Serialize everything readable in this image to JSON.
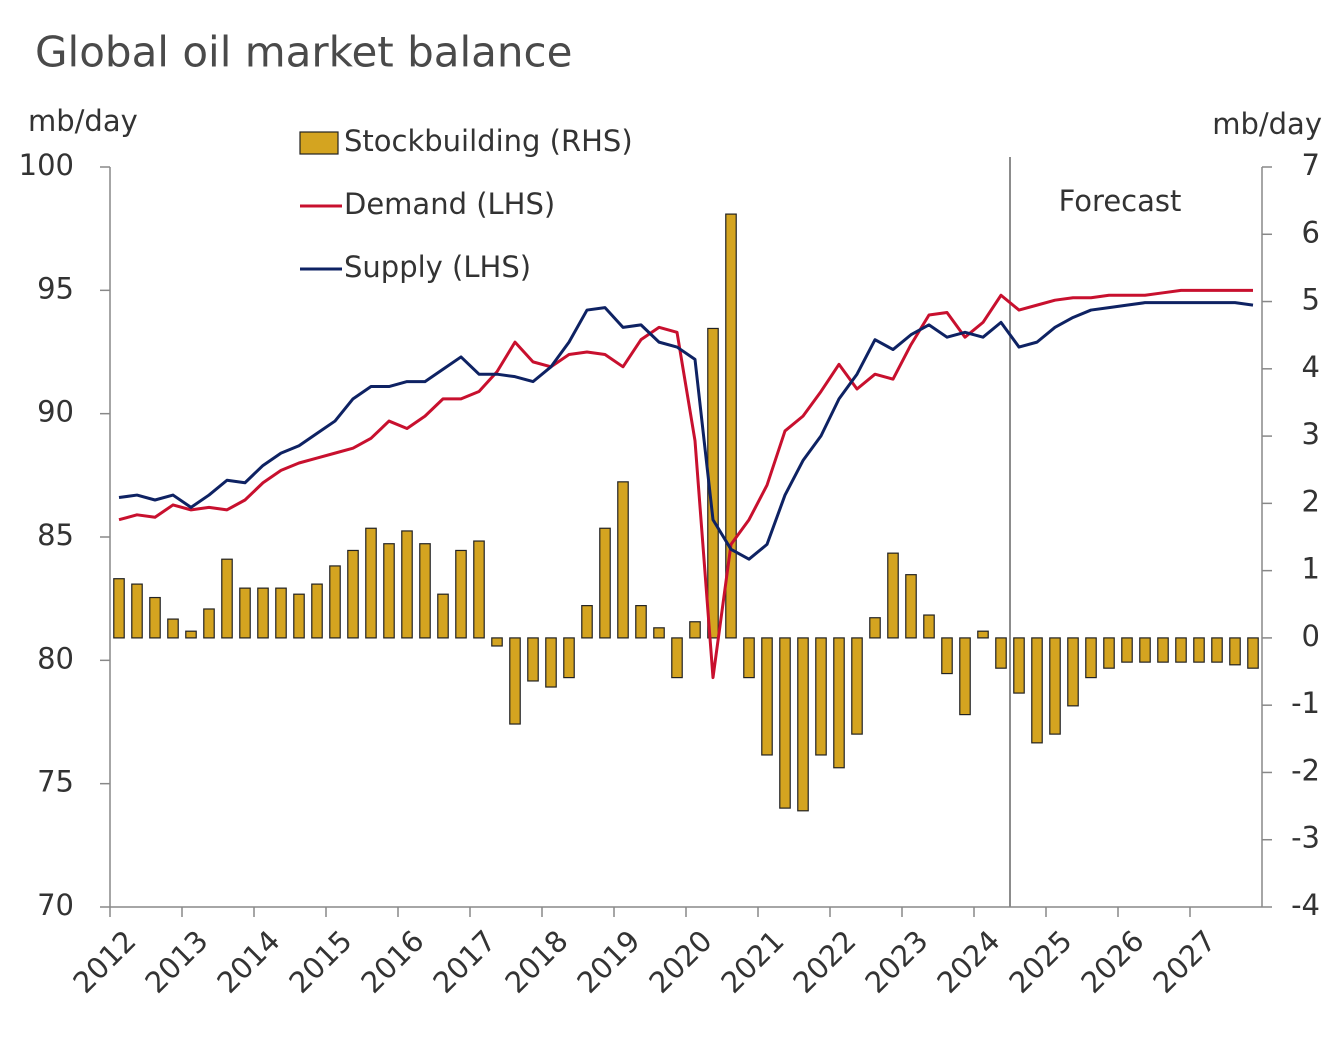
{
  "chart_data": {
    "type": "bar-line",
    "title": "Global oil market balance",
    "ylabel": "mb/day",
    "y2label": "mb/day",
    "annotation": "Forecast",
    "forecast_line": 2024.5,
    "x": [
      2012.125,
      2012.375,
      2012.625,
      2012.875,
      2013.125,
      2013.375,
      2013.625,
      2013.875,
      2014.125,
      2014.375,
      2014.625,
      2014.875,
      2015.125,
      2015.375,
      2015.625,
      2015.875,
      2016.125,
      2016.375,
      2016.625,
      2016.875,
      2017.125,
      2017.375,
      2017.625,
      2017.875,
      2018.125,
      2018.375,
      2018.625,
      2018.875,
      2019.125,
      2019.375,
      2019.625,
      2019.875,
      2020.125,
      2020.375,
      2020.625,
      2020.875,
      2021.125,
      2021.375,
      2021.625,
      2021.875,
      2022.125,
      2022.375,
      2022.625,
      2022.875,
      2023.125,
      2023.375,
      2023.625,
      2023.875,
      2024.125,
      2024.375,
      2024.625,
      2024.875,
      2025.125,
      2025.375,
      2025.625,
      2025.875,
      2026.125,
      2026.375,
      2026.625,
      2026.875,
      2027.125,
      2027.375,
      2027.625,
      2027.875
    ],
    "series": [
      {
        "name": "Stockbuilding (RHS)",
        "type": "bar",
        "axis": "y2",
        "color": "#d4a420",
        "values": [
          0.88,
          0.8,
          0.6,
          0.28,
          0.1,
          0.43,
          1.17,
          0.74,
          0.74,
          0.74,
          0.65,
          0.8,
          1.07,
          1.3,
          1.63,
          1.4,
          1.59,
          1.4,
          0.65,
          1.3,
          1.44,
          -0.12,
          -1.28,
          -0.64,
          -0.73,
          -0.59,
          0.48,
          1.63,
          2.32,
          0.48,
          0.15,
          -0.59,
          0.24,
          4.6,
          6.3,
          -0.59,
          -1.74,
          -2.53,
          -2.57,
          -1.74,
          -1.93,
          -1.43,
          0.3,
          1.26,
          0.94,
          0.34,
          -0.53,
          -1.14,
          0.1,
          -0.45,
          -0.82,
          -1.56,
          -1.43,
          -1.01,
          -0.59,
          -0.45,
          -0.36,
          -0.36,
          -0.36,
          -0.36,
          -0.36,
          -0.36,
          -0.4,
          -0.45
        ]
      },
      {
        "name": "Demand (LHS)",
        "type": "line",
        "axis": "y",
        "color": "#c8102e",
        "values": [
          85.7,
          85.9,
          85.8,
          86.3,
          86.1,
          86.2,
          86.1,
          86.5,
          87.2,
          87.7,
          88.0,
          88.2,
          88.4,
          88.6,
          89.0,
          89.7,
          89.4,
          89.9,
          90.6,
          90.6,
          90.9,
          91.7,
          92.9,
          92.1,
          91.9,
          92.4,
          92.5,
          92.4,
          91.9,
          93.0,
          93.5,
          93.3,
          88.9,
          79.3,
          84.7,
          85.7,
          87.1,
          89.3,
          89.9,
          90.9,
          92.0,
          91.0,
          91.6,
          91.4,
          92.8,
          94.0,
          94.1,
          93.1,
          93.7,
          94.8,
          94.2,
          94.4,
          94.6,
          94.7,
          94.7,
          94.8,
          94.8,
          94.8,
          94.9,
          95.0,
          95.0,
          95.0,
          95.0,
          95.0
        ]
      },
      {
        "name": "Supply (LHS)",
        "type": "line",
        "axis": "y",
        "color": "#0e2263",
        "values": [
          86.6,
          86.7,
          86.5,
          86.7,
          86.2,
          86.7,
          87.3,
          87.2,
          87.9,
          88.4,
          88.7,
          89.2,
          89.7,
          90.6,
          91.1,
          91.1,
          91.3,
          91.3,
          91.8,
          92.3,
          91.6,
          91.6,
          91.5,
          91.3,
          91.9,
          92.9,
          94.2,
          94.3,
          93.5,
          93.6,
          92.9,
          92.7,
          92.2,
          85.7,
          84.5,
          84.1,
          84.7,
          86.7,
          88.1,
          89.1,
          90.6,
          91.6,
          93.0,
          92.6,
          93.2,
          93.6,
          93.1,
          93.3,
          93.1,
          93.7,
          92.7,
          92.9,
          93.5,
          93.9,
          94.2,
          94.3,
          94.4,
          94.5,
          94.5,
          94.5,
          94.5,
          94.5,
          94.5,
          94.4
        ]
      }
    ],
    "xlim": [
      2012,
      2028
    ],
    "xticks": [
      2012,
      2013,
      2014,
      2015,
      2016,
      2017,
      2018,
      2019,
      2020,
      2021,
      2022,
      2023,
      2024,
      2025,
      2026,
      2027
    ],
    "ylim": [
      70,
      100
    ],
    "yticks": [
      70,
      75,
      80,
      85,
      90,
      95,
      100
    ],
    "y2lim": [
      -4,
      7
    ],
    "y2ticks": [
      -4,
      -3,
      -2,
      -1,
      0,
      1,
      2,
      3,
      4,
      5,
      6,
      7
    ],
    "legend": "top-left",
    "grid": false
  }
}
